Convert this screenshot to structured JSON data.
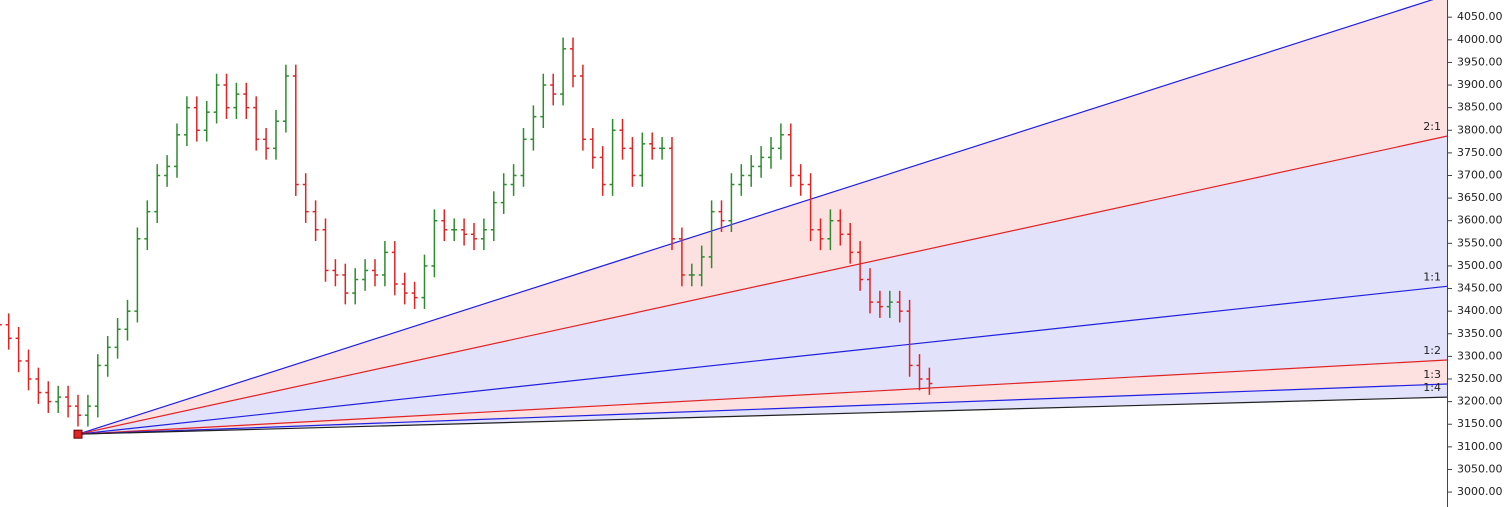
{
  "chart_data": {
    "type": "ohlc",
    "up_color": "#2e8b2e",
    "down_color": "#e02424",
    "ylim": [
      2967,
      4088
    ],
    "yticks": [
      {
        "value": 3000,
        "label": "3000.00"
      },
      {
        "value": 3050,
        "label": "3050.00"
      },
      {
        "value": 3100,
        "label": "3100.00"
      },
      {
        "value": 3150,
        "label": "3150.00"
      },
      {
        "value": 3200,
        "label": "3200.00"
      },
      {
        "value": 3250,
        "label": "3250.00"
      },
      {
        "value": 3300,
        "label": "3300.00"
      },
      {
        "value": 3350,
        "label": "3350.00"
      },
      {
        "value": 3400,
        "label": "3400.00"
      },
      {
        "value": 3450,
        "label": "3450.00"
      },
      {
        "value": 3500,
        "label": "3500.00"
      },
      {
        "value": 3550,
        "label": "3550.00"
      },
      {
        "value": 3600,
        "label": "3600.00"
      },
      {
        "value": 3650,
        "label": "3650.00"
      },
      {
        "value": 3700,
        "label": "3700.00"
      },
      {
        "value": 3750,
        "label": "3750.00"
      },
      {
        "value": 3800,
        "label": "3800.00"
      },
      {
        "value": 3850,
        "label": "3850.00"
      },
      {
        "value": 3900,
        "label": "3900.00"
      },
      {
        "value": 3950,
        "label": "3950.00"
      },
      {
        "value": 4000,
        "label": "4000.00"
      },
      {
        "value": 4050,
        "label": "4050.00"
      }
    ],
    "open": [
      3390,
      3370,
      3340,
      3290,
      3250,
      3220,
      3200,
      3210,
      3190,
      3170,
      3190,
      3280,
      3320,
      3360,
      3400,
      3560,
      3620,
      3700,
      3720,
      3790,
      3850,
      3800,
      3840,
      3900,
      3850,
      3880,
      3850,
      3780,
      3760,
      3820,
      3920,
      3680,
      3620,
      3580,
      3490,
      3480,
      3440,
      3470,
      3490,
      3480,
      3530,
      3460,
      3440,
      3430,
      3500,
      3600,
      3580,
      3580,
      3570,
      3560,
      3580,
      3640,
      3680,
      3700,
      3780,
      3830,
      3900,
      3880,
      3980,
      3920,
      3780,
      3740,
      3680,
      3800,
      3760,
      3700,
      3770,
      3760,
      3760,
      3560,
      3480,
      3480,
      3520,
      3620,
      3600,
      3680,
      3700,
      3720,
      3740,
      3760,
      3790,
      3700,
      3680,
      3580,
      3560,
      3600,
      3570,
      3530,
      3470,
      3420,
      3410,
      3420,
      3400,
      3280,
      3250
    ],
    "high": [
      3415,
      3395,
      3365,
      3315,
      3275,
      3245,
      3235,
      3235,
      3215,
      3215,
      3305,
      3345,
      3385,
      3425,
      3585,
      3645,
      3725,
      3745,
      3815,
      3875,
      3875,
      3865,
      3925,
      3925,
      3905,
      3905,
      3875,
      3805,
      3845,
      3945,
      3945,
      3705,
      3645,
      3605,
      3515,
      3505,
      3495,
      3515,
      3515,
      3555,
      3555,
      3485,
      3465,
      3525,
      3625,
      3625,
      3605,
      3605,
      3595,
      3605,
      3665,
      3705,
      3725,
      3805,
      3855,
      3925,
      3925,
      4005,
      4005,
      3945,
      3805,
      3765,
      3825,
      3825,
      3785,
      3795,
      3795,
      3785,
      3785,
      3585,
      3505,
      3545,
      3645,
      3645,
      3705,
      3725,
      3745,
      3765,
      3785,
      3815,
      3815,
      3725,
      3705,
      3605,
      3625,
      3625,
      3595,
      3555,
      3495,
      3445,
      3445,
      3445,
      3425,
      3305,
      3275
    ],
    "low": [
      3345,
      3315,
      3265,
      3225,
      3195,
      3175,
      3175,
      3165,
      3145,
      3145,
      3165,
      3255,
      3295,
      3335,
      3375,
      3535,
      3595,
      3675,
      3695,
      3765,
      3775,
      3775,
      3815,
      3825,
      3825,
      3825,
      3755,
      3735,
      3735,
      3795,
      3655,
      3595,
      3555,
      3465,
      3455,
      3415,
      3415,
      3445,
      3455,
      3455,
      3435,
      3415,
      3405,
      3405,
      3475,
      3555,
      3555,
      3545,
      3535,
      3535,
      3555,
      3615,
      3655,
      3675,
      3755,
      3805,
      3855,
      3855,
      3895,
      3755,
      3715,
      3655,
      3655,
      3735,
      3675,
      3675,
      3735,
      3735,
      3535,
      3455,
      3455,
      3455,
      3495,
      3575,
      3575,
      3655,
      3675,
      3695,
      3715,
      3735,
      3675,
      3655,
      3555,
      3535,
      3535,
      3545,
      3505,
      3445,
      3395,
      3385,
      3385,
      3375,
      3255,
      3225,
      3215
    ],
    "close": [
      3370,
      3340,
      3290,
      3250,
      3220,
      3200,
      3210,
      3190,
      3170,
      3190,
      3280,
      3320,
      3360,
      3400,
      3560,
      3620,
      3700,
      3720,
      3790,
      3850,
      3800,
      3840,
      3900,
      3850,
      3880,
      3850,
      3780,
      3760,
      3820,
      3920,
      3680,
      3620,
      3580,
      3490,
      3480,
      3440,
      3470,
      3490,
      3480,
      3530,
      3460,
      3440,
      3430,
      3500,
      3600,
      3580,
      3580,
      3570,
      3560,
      3580,
      3640,
      3680,
      3700,
      3780,
      3830,
      3900,
      3880,
      3980,
      3920,
      3780,
      3740,
      3680,
      3800,
      3760,
      3700,
      3770,
      3760,
      3760,
      3560,
      3480,
      3480,
      3520,
      3620,
      3600,
      3680,
      3700,
      3720,
      3740,
      3760,
      3790,
      3700,
      3680,
      3580,
      3560,
      3600,
      3570,
      3530,
      3470,
      3420,
      3410,
      3420,
      3400,
      3280,
      3250,
      3240
    ],
    "fan": {
      "origin": {
        "bar": 8,
        "price": 3128
      },
      "origin_color": "#e02424",
      "fills": [
        "#fde0e0",
        "#e2e2fb",
        "#e2e2fb",
        "#fde0e0",
        "#e2e2fb"
      ],
      "lines": [
        {
          "end": 4099,
          "color": "#2020e0"
        },
        {
          "label": "2:1",
          "end": 3787,
          "color": "#e02424"
        },
        {
          "label": "1:1",
          "end": 3455,
          "color": "#2020e0"
        },
        {
          "label": "1:2",
          "end": 3292,
          "color": "#e02424"
        },
        {
          "label": "1:3",
          "end": 3239,
          "color": "#2020e0"
        },
        {
          "label": "1:4",
          "end": 3210,
          "color": "#202020"
        }
      ]
    }
  }
}
